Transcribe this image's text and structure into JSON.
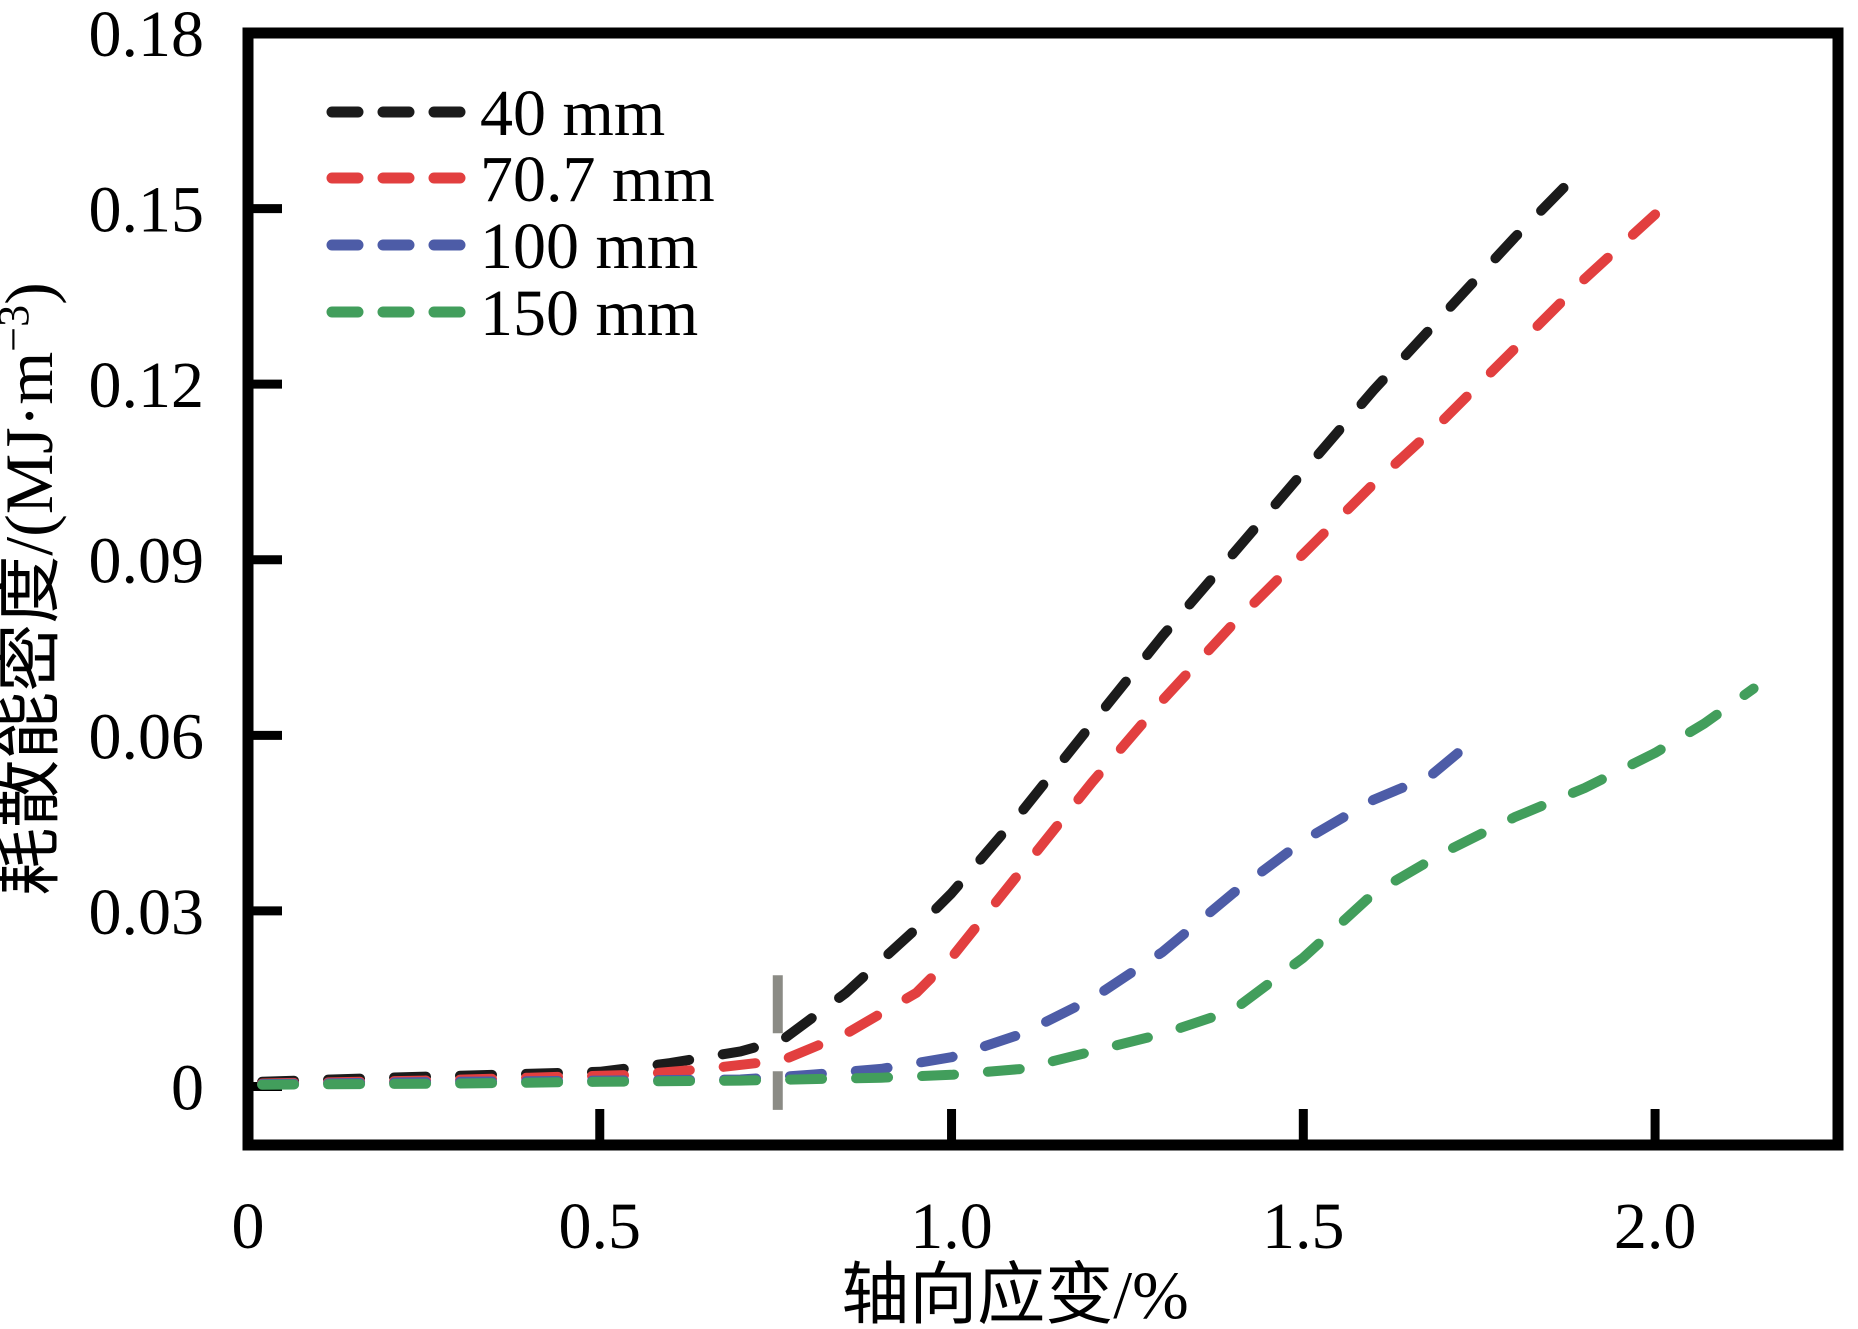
{
  "figure": {
    "background_color": "#ffffff",
    "axis_color": "#000000"
  },
  "chart_data": {
    "type": "line",
    "title": "",
    "xlabel": "轴向应变/%",
    "ylabel": "耗散能密度/(MJ·m−3)",
    "ylabel_parts": {
      "pre": "耗散能密度/(MJ·m",
      "sup": "−3",
      "post": ")"
    },
    "xlim": [
      0,
      2.26
    ],
    "ylim": [
      -0.01,
      0.18
    ],
    "x_ticks": {
      "values": [
        0,
        0.5,
        1.0,
        1.5,
        2.0
      ],
      "labels": [
        "0",
        "0.5",
        "1.0",
        "1.5",
        "2.0"
      ]
    },
    "y_ticks": {
      "values": [
        0,
        0.03,
        0.06,
        0.09,
        0.12,
        0.15,
        0.18
      ],
      "labels": [
        "0",
        "0.03",
        "0.06",
        "0.09",
        "0.12",
        "0.15",
        "0.18"
      ]
    },
    "grid": false,
    "line_style": "dashed",
    "legend_position": "upper-left-inside",
    "reference_marker": {
      "type": "vertical-dashed-line",
      "x": 0.753,
      "y_from": -0.004,
      "y_to": 0.019,
      "color": "#8b8b85"
    },
    "series": [
      {
        "name": "40 mm",
        "color": "#1b1b1b",
        "points": [
          [
            0.02,
            0.0008
          ],
          [
            0.2,
            0.0015
          ],
          [
            0.35,
            0.002
          ],
          [
            0.5,
            0.0025
          ],
          [
            0.6,
            0.004
          ],
          [
            0.7,
            0.006
          ],
          [
            0.76,
            0.008
          ],
          [
            0.85,
            0.016
          ],
          [
            0.95,
            0.027
          ],
          [
            1.0,
            0.033
          ],
          [
            1.1,
            0.047
          ],
          [
            1.2,
            0.062
          ],
          [
            1.3,
            0.077
          ],
          [
            1.4,
            0.091
          ],
          [
            1.5,
            0.105
          ],
          [
            1.6,
            0.119
          ],
          [
            1.7,
            0.132
          ],
          [
            1.8,
            0.145
          ],
          [
            1.89,
            0.156
          ]
        ]
      },
      {
        "name": "70.7 mm",
        "color": "#e23f3f",
        "points": [
          [
            0.02,
            0.0005
          ],
          [
            0.25,
            0.001
          ],
          [
            0.4,
            0.0015
          ],
          [
            0.55,
            0.002
          ],
          [
            0.65,
            0.003
          ],
          [
            0.76,
            0.0045
          ],
          [
            0.85,
            0.009
          ],
          [
            0.95,
            0.016
          ],
          [
            1.0,
            0.022
          ],
          [
            1.1,
            0.037
          ],
          [
            1.2,
            0.052
          ],
          [
            1.3,
            0.066
          ],
          [
            1.4,
            0.079
          ],
          [
            1.5,
            0.091
          ],
          [
            1.6,
            0.103
          ],
          [
            1.7,
            0.114
          ],
          [
            1.8,
            0.126
          ],
          [
            1.9,
            0.138
          ],
          [
            2.0,
            0.149
          ]
        ]
      },
      {
        "name": "100 mm",
        "color": "#4d5ca7",
        "points": [
          [
            0.02,
            0.0004
          ],
          [
            0.3,
            0.0008
          ],
          [
            0.5,
            0.001
          ],
          [
            0.7,
            0.0012
          ],
          [
            0.8,
            0.002
          ],
          [
            0.9,
            0.003
          ],
          [
            1.0,
            0.005
          ],
          [
            1.1,
            0.009
          ],
          [
            1.2,
            0.015
          ],
          [
            1.3,
            0.023
          ],
          [
            1.4,
            0.033
          ],
          [
            1.5,
            0.042
          ],
          [
            1.6,
            0.049
          ],
          [
            1.68,
            0.053
          ],
          [
            1.75,
            0.06
          ]
        ]
      },
      {
        "name": "150 mm",
        "color": "#429e5c",
        "points": [
          [
            0.02,
            0.0003
          ],
          [
            0.3,
            0.0005
          ],
          [
            0.5,
            0.0008
          ],
          [
            0.7,
            0.001
          ],
          [
            0.9,
            0.0015
          ],
          [
            1.0,
            0.002
          ],
          [
            1.1,
            0.003
          ],
          [
            1.2,
            0.006
          ],
          [
            1.3,
            0.009
          ],
          [
            1.4,
            0.013
          ],
          [
            1.5,
            0.022
          ],
          [
            1.6,
            0.033
          ],
          [
            1.7,
            0.04
          ],
          [
            1.8,
            0.046
          ],
          [
            1.9,
            0.051
          ],
          [
            2.0,
            0.057
          ],
          [
            2.07,
            0.062
          ],
          [
            2.14,
            0.068
          ]
        ]
      }
    ]
  }
}
